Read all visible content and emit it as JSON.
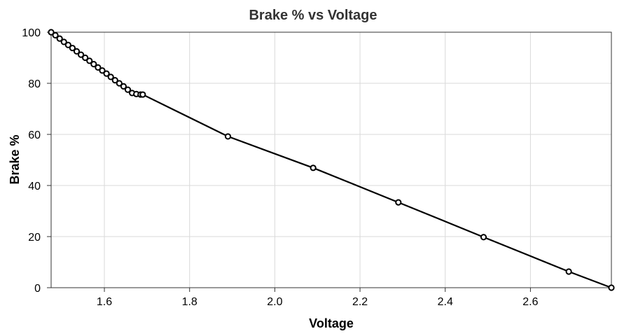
{
  "chart_data": {
    "type": "line",
    "title": "Brake % vs Voltage",
    "xlabel": "Voltage",
    "ylabel": "Brake %",
    "xlim": [
      1.475,
      2.79
    ],
    "ylim": [
      0,
      100
    ],
    "xticks": [
      1.6,
      1.8,
      2.0,
      2.2,
      2.4,
      2.6
    ],
    "xtick_labels": [
      "1.6",
      "1.8",
      "2.0",
      "2.2",
      "2.4",
      "2.6"
    ],
    "yticks": [
      0,
      20,
      40,
      60,
      80,
      100
    ],
    "ytick_labels": [
      "0",
      "20",
      "40",
      "60",
      "80",
      "100"
    ],
    "grid": true,
    "legend": "none",
    "series": [
      {
        "color": "#000000",
        "marker": "open-circle",
        "x": [
          1.475,
          1.485,
          1.495,
          1.505,
          1.515,
          1.525,
          1.535,
          1.545,
          1.555,
          1.565,
          1.575,
          1.585,
          1.595,
          1.605,
          1.615,
          1.625,
          1.635,
          1.645,
          1.655,
          1.665,
          1.675,
          1.685,
          1.69,
          1.89,
          2.09,
          2.29,
          2.49,
          2.69,
          2.79
        ],
        "y": [
          100,
          98.8,
          97.5,
          96.2,
          95.0,
          93.8,
          92.5,
          91.2,
          90.0,
          88.8,
          87.5,
          86.2,
          85.0,
          83.8,
          82.5,
          81.2,
          80.0,
          78.8,
          77.5,
          76.2,
          75.8,
          75.6,
          75.6,
          59.2,
          46.9,
          33.4,
          19.8,
          6.3,
          0
        ]
      }
    ]
  }
}
